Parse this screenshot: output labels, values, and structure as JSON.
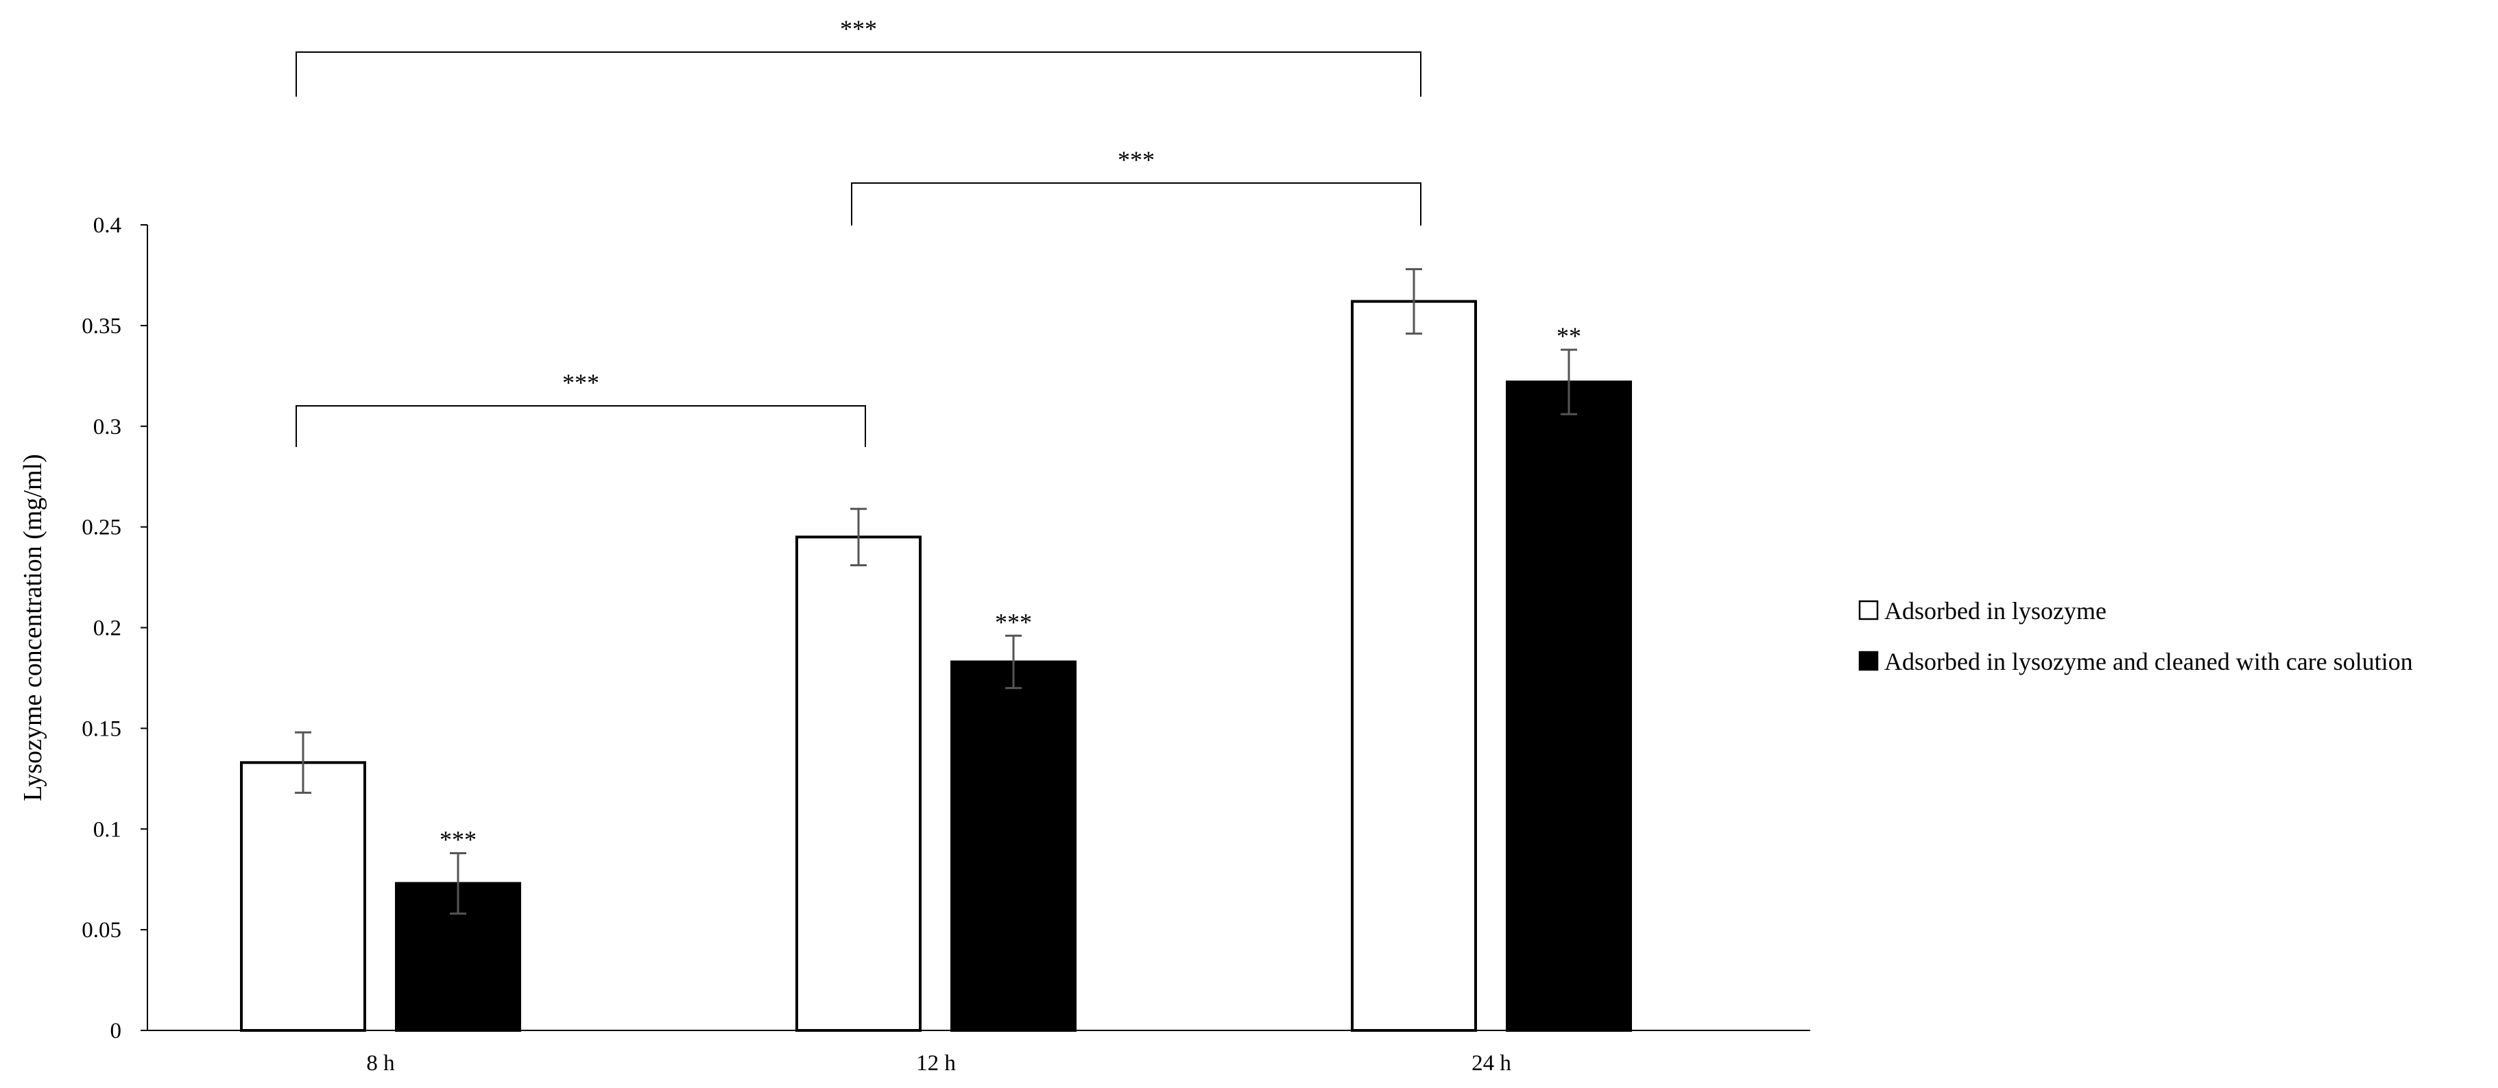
{
  "chart_data": {
    "type": "bar",
    "title": "",
    "xlabel": "",
    "ylabel": "Lysozyme concentration (mg/ml)",
    "ylim": [
      0,
      0.4
    ],
    "yticks": [
      0,
      0.05,
      0.1,
      0.15,
      0.2,
      0.25,
      0.3,
      0.35,
      0.4
    ],
    "ytick_labels": [
      "0",
      "0.05",
      "0.1",
      "0.15",
      "0.2",
      "0.25",
      "0.3",
      "0.35",
      "0.4"
    ],
    "categories": [
      "8 h",
      "12 h",
      "24 h"
    ],
    "grid": false,
    "legend_position": "right",
    "series": [
      {
        "name": "Adsorbed in lysozyme",
        "fill": "#ffffff",
        "stroke": "#000000",
        "values": [
          0.133,
          0.245,
          0.362
        ],
        "errors": [
          0.015,
          0.014,
          0.016
        ],
        "significance": [
          "",
          "",
          ""
        ]
      },
      {
        "name": "Adsorbed in lysozyme and cleaned with care solution",
        "fill": "#000000",
        "stroke": "#000000",
        "values": [
          0.073,
          0.183,
          0.322
        ],
        "errors": [
          0.015,
          0.013,
          0.016
        ],
        "significance": [
          "***",
          "***",
          "**"
        ]
      }
    ],
    "brackets": [
      {
        "from": "8 h",
        "to": "12 h",
        "label": "***"
      },
      {
        "from": "12 h",
        "to": "24 h",
        "label": "***"
      },
      {
        "from": "8 h",
        "to": "24 h",
        "label": "***"
      }
    ]
  }
}
